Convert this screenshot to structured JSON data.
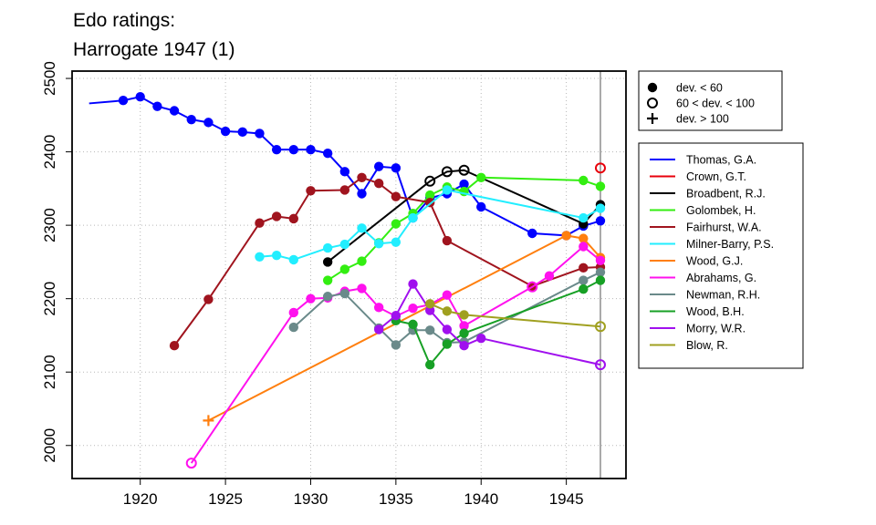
{
  "chart_data": {
    "type": "line",
    "title": [
      "Edo ratings:",
      "Harrogate 1947 (1)"
    ],
    "xlabel": "",
    "ylabel": "",
    "xlim": [
      1916,
      1948.5
    ],
    "ylim": [
      1955,
      2510
    ],
    "xticks": [
      1920,
      1925,
      1930,
      1935,
      1940,
      1945
    ],
    "yticks": [
      2000,
      2100,
      2200,
      2300,
      2400,
      2500
    ],
    "grid": true,
    "reference_line_x": 1947,
    "marker_legend": {
      "placement": "top-right",
      "items": [
        {
          "marker": "filled",
          "label": "dev. < 60"
        },
        {
          "marker": "open",
          "label": "60 < dev. < 100"
        },
        {
          "marker": "plus",
          "label": "dev. > 100"
        }
      ]
    },
    "series_legend_placement": "right",
    "series": [
      {
        "name": "Thomas, G.A.",
        "color": "#0000ff",
        "points": [
          [
            1917,
            2466,
            "none"
          ],
          [
            1919,
            2470,
            "filled"
          ],
          [
            1920,
            2475,
            "filled"
          ],
          [
            1921,
            2462,
            "filled"
          ],
          [
            1922,
            2456,
            "filled"
          ],
          [
            1923,
            2444,
            "filled"
          ],
          [
            1924,
            2440,
            "filled"
          ],
          [
            1925,
            2428,
            "filled"
          ],
          [
            1926,
            2427,
            "filled"
          ],
          [
            1927,
            2425,
            "filled"
          ],
          [
            1928,
            2403,
            "filled"
          ],
          [
            1929,
            2403,
            "filled"
          ],
          [
            1930,
            2403,
            "filled"
          ],
          [
            1931,
            2398,
            "filled"
          ],
          [
            1932,
            2373,
            "filled"
          ],
          [
            1933,
            2343,
            "filled"
          ],
          [
            1934,
            2380,
            "filled"
          ],
          [
            1935,
            2378,
            "filled"
          ],
          [
            1936,
            2310,
            "filled"
          ],
          [
            1937,
            2337,
            "filled"
          ],
          [
            1938,
            2343,
            "filled"
          ],
          [
            1939,
            2356,
            "filled"
          ],
          [
            1940,
            2325,
            "filled"
          ],
          [
            1943,
            2289,
            "filled"
          ],
          [
            1945,
            2286,
            "filled"
          ],
          [
            1946,
            2299,
            "filled"
          ],
          [
            1947,
            2306,
            "filled"
          ]
        ]
      },
      {
        "name": "Crown, G.T.",
        "color": "#e8000b",
        "points": [
          [
            1947,
            2378,
            "open"
          ]
        ]
      },
      {
        "name": "Broadbent, R.J.",
        "color": "#000000",
        "points": [
          [
            1931,
            2250,
            "filled"
          ],
          [
            1937,
            2360,
            "open"
          ],
          [
            1938,
            2373,
            "open"
          ],
          [
            1939,
            2375,
            "open"
          ],
          [
            1946,
            2302,
            "filled"
          ],
          [
            1947,
            2328,
            "filled"
          ]
        ]
      },
      {
        "name": "Golombek, H.",
        "color": "#33ee11",
        "points": [
          [
            1931,
            2225,
            "filled"
          ],
          [
            1932,
            2240,
            "filled"
          ],
          [
            1933,
            2251,
            "filled"
          ],
          [
            1934,
            2276,
            "filled"
          ],
          [
            1935,
            2302,
            "filled"
          ],
          [
            1936,
            2316,
            "filled"
          ],
          [
            1937,
            2341,
            "filled"
          ],
          [
            1938,
            2352,
            "filled"
          ],
          [
            1939,
            2346,
            "filled"
          ],
          [
            1940,
            2365,
            "filled"
          ],
          [
            1946,
            2361,
            "filled"
          ],
          [
            1947,
            2353,
            "filled"
          ]
        ]
      },
      {
        "name": "Fairhurst, W.A.",
        "color": "#a0141e",
        "points": [
          [
            1922,
            2136,
            "filled"
          ],
          [
            1924,
            2199,
            "filled"
          ],
          [
            1927,
            2303,
            "filled"
          ],
          [
            1928,
            2312,
            "filled"
          ],
          [
            1929,
            2309,
            "filled"
          ],
          [
            1930,
            2347,
            "filled"
          ],
          [
            1932,
            2348,
            "filled"
          ],
          [
            1933,
            2365,
            "filled"
          ],
          [
            1934,
            2357,
            "filled"
          ],
          [
            1935,
            2339,
            "filled"
          ],
          [
            1937,
            2331,
            "filled"
          ],
          [
            1938,
            2279,
            "filled"
          ],
          [
            1943,
            2217,
            "filled"
          ],
          [
            1946,
            2242,
            "filled"
          ],
          [
            1947,
            2243,
            "filled"
          ]
        ]
      },
      {
        "name": "Milner-Barry, P.S.",
        "color": "#22eeff",
        "points": [
          [
            1927,
            2257,
            "filled"
          ],
          [
            1928,
            2259,
            "filled"
          ],
          [
            1929,
            2253,
            "filled"
          ],
          [
            1931,
            2269,
            "filled"
          ],
          [
            1932,
            2274,
            "filled"
          ],
          [
            1933,
            2296,
            "filled"
          ],
          [
            1934,
            2275,
            "filled"
          ],
          [
            1935,
            2277,
            "filled"
          ],
          [
            1936,
            2310,
            "filled"
          ],
          [
            1938,
            2348,
            "filled"
          ],
          [
            1946,
            2310,
            "filled"
          ],
          [
            1947,
            2323,
            "filled"
          ]
        ]
      },
      {
        "name": "Wood, G.J.",
        "color": "#ff7f0e",
        "points": [
          [
            1924,
            2034,
            "plus"
          ],
          [
            1945,
            2286,
            "filled"
          ],
          [
            1946,
            2282,
            "filled"
          ],
          [
            1947,
            2256,
            "filled"
          ]
        ]
      },
      {
        "name": "Abrahams, G.",
        "color": "#ff11ee",
        "points": [
          [
            1923,
            1976,
            "open"
          ],
          [
            1929,
            2181,
            "filled"
          ],
          [
            1930,
            2200,
            "filled"
          ],
          [
            1931,
            2201,
            "filled"
          ],
          [
            1932,
            2210,
            "filled"
          ],
          [
            1933,
            2214,
            "filled"
          ],
          [
            1934,
            2188,
            "filled"
          ],
          [
            1935,
            2176,
            "filled"
          ],
          [
            1936,
            2187,
            "filled"
          ],
          [
            1937,
            2192,
            "filled"
          ],
          [
            1938,
            2205,
            "filled"
          ],
          [
            1939,
            2163,
            "filled"
          ],
          [
            1943,
            2216,
            "open"
          ],
          [
            1944,
            2231,
            "filled"
          ],
          [
            1946,
            2271,
            "filled"
          ],
          [
            1947,
            2252,
            "filled"
          ]
        ]
      },
      {
        "name": "Newman, R.H.",
        "color": "#6a8a8a",
        "points": [
          [
            1929,
            2161,
            "filled"
          ],
          [
            1931,
            2203,
            "filled"
          ],
          [
            1932,
            2207,
            "filled"
          ],
          [
            1934,
            2160,
            "filled"
          ],
          [
            1935,
            2137,
            "filled"
          ],
          [
            1936,
            2157,
            "filled"
          ],
          [
            1937,
            2157,
            "filled"
          ],
          [
            1938,
            2140,
            "filled"
          ],
          [
            1939,
            2141,
            "filled"
          ],
          [
            1946,
            2225,
            "filled"
          ],
          [
            1947,
            2236,
            "filled"
          ]
        ]
      },
      {
        "name": "Wood, B.H.",
        "color": "#17a025",
        "points": [
          [
            1935,
            2170,
            "filled"
          ],
          [
            1936,
            2165,
            "filled"
          ],
          [
            1937,
            2110,
            "filled"
          ],
          [
            1938,
            2138,
            "filled"
          ],
          [
            1939,
            2153,
            "filled"
          ],
          [
            1946,
            2213,
            "filled"
          ],
          [
            1947,
            2225,
            "filled"
          ]
        ]
      },
      {
        "name": "Morry, W.R.",
        "color": "#a010ee",
        "points": [
          [
            1934,
            2158,
            "filled"
          ],
          [
            1935,
            2177,
            "filled"
          ],
          [
            1936,
            2220,
            "filled"
          ],
          [
            1937,
            2184,
            "filled"
          ],
          [
            1938,
            2158,
            "filled"
          ],
          [
            1939,
            2136,
            "filled"
          ],
          [
            1940,
            2146,
            "filled"
          ],
          [
            1947,
            2110,
            "open"
          ]
        ]
      },
      {
        "name": "Blow, R.",
        "color": "#a0a020",
        "points": [
          [
            1937,
            2193,
            "filled"
          ],
          [
            1938,
            2183,
            "filled"
          ],
          [
            1939,
            2178,
            "filled"
          ],
          [
            1947,
            2162,
            "open"
          ]
        ]
      }
    ]
  }
}
